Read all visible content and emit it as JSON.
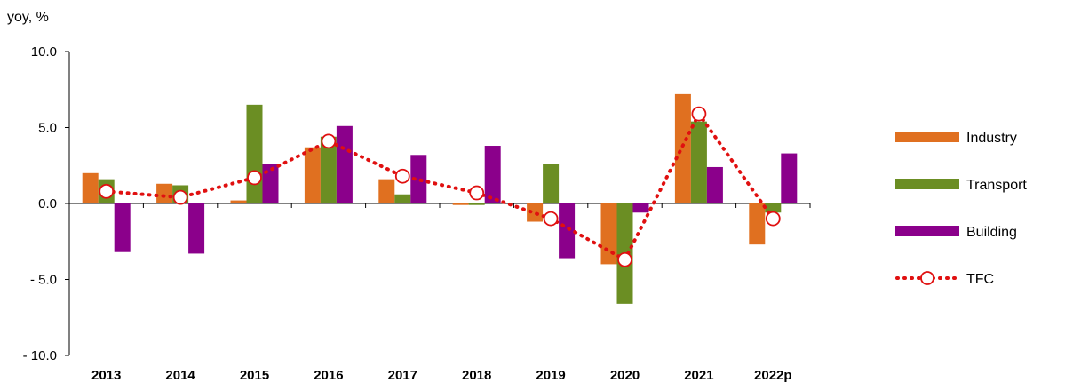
{
  "chart_data": {
    "type": "bar",
    "ylabel": "yoy, %",
    "ylim": [
      -10,
      10
    ],
    "yticks": [
      10,
      5,
      0,
      -5,
      -10
    ],
    "ytick_labels": [
      "10.0",
      "5.0",
      "0.0",
      "- 5.0",
      "- 10.0"
    ],
    "categories": [
      "2013",
      "2014",
      "2015",
      "2016",
      "2017",
      "2018",
      "2019",
      "2020",
      "2021",
      "2022p"
    ],
    "series": [
      {
        "name": "Industry",
        "type": "bar",
        "color": "#E07020",
        "values": [
          2.0,
          1.3,
          0.2,
          3.7,
          1.6,
          -0.1,
          -1.2,
          -4.0,
          7.2,
          -2.7
        ]
      },
      {
        "name": "Transport",
        "type": "bar",
        "color": "#6B8E23",
        "values": [
          1.6,
          1.2,
          6.5,
          4.4,
          0.6,
          -0.1,
          2.6,
          -6.6,
          5.4,
          -0.6
        ]
      },
      {
        "name": "Building",
        "type": "bar",
        "color": "#8B008B",
        "values": [
          -3.2,
          -3.3,
          2.6,
          5.1,
          3.2,
          3.8,
          -3.6,
          -0.6,
          2.4,
          3.3
        ]
      },
      {
        "name": "TFC",
        "type": "line",
        "color": "#E01010",
        "values": [
          0.8,
          0.4,
          1.7,
          4.1,
          1.8,
          0.7,
          -1.0,
          -3.7,
          5.9,
          -1.0
        ]
      }
    ],
    "legend_position": "right",
    "grid": false
  }
}
